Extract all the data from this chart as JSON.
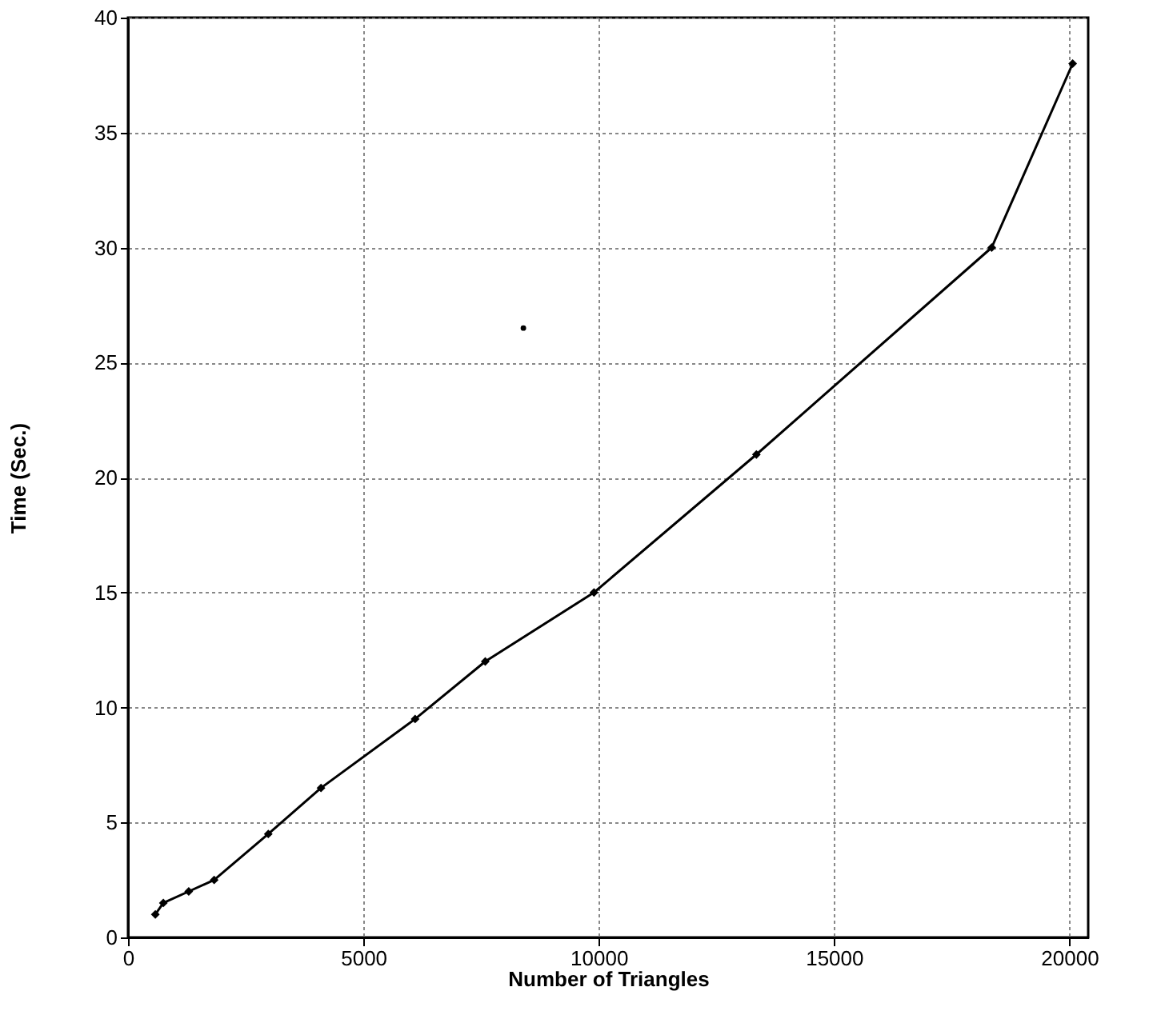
{
  "chart_data": {
    "type": "line",
    "xlabel": "Number of Triangles",
    "ylabel": "Time (Sec.)",
    "xlim": [
      0,
      20400
    ],
    "xticks": [
      0,
      5000,
      10000,
      15000,
      20000
    ],
    "ylim": [
      0,
      40
    ],
    "yticks": [
      0,
      5,
      10,
      15,
      20,
      25,
      30,
      35,
      40
    ],
    "grid": true,
    "marker": "diamond",
    "line_style": "solid",
    "series": [
      {
        "color": "#000000",
        "x": [
          580,
          750,
          1290,
          1830,
          2980,
          4100,
          6100,
          7590,
          9900,
          13350,
          18350,
          20070
        ],
        "values": [
          1,
          1.5,
          2,
          2.5,
          4.5,
          6.5,
          9.5,
          12,
          15,
          21,
          30,
          38
        ]
      },
      {
        "type": "scatter",
        "color": "#000000",
        "x": [
          8400
        ],
        "values": [
          26.5
        ]
      }
    ]
  }
}
